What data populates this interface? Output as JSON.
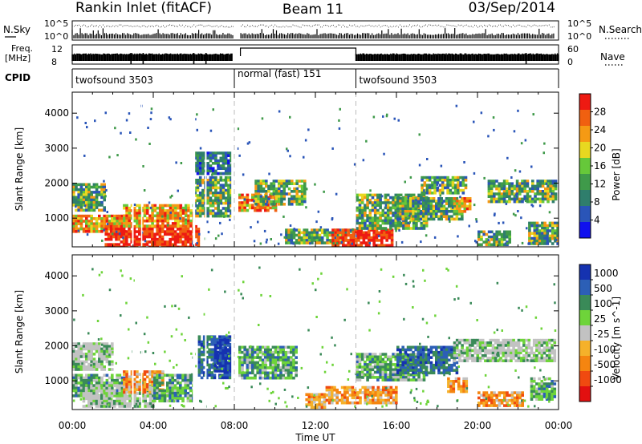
{
  "header": {
    "radar": "Rankin Inlet (fitACF)",
    "beam": "Beam 11",
    "date": "03/Sep/2014"
  },
  "noise_panel": {
    "left_label": "N.Sky",
    "right_label": "N.Search",
    "left_ticks": [
      "10^5",
      "10^0"
    ],
    "right_ticks": [
      "10^5",
      "10^0"
    ]
  },
  "freq_panel": {
    "left_label_line1": "Freq.",
    "left_label_line2": "[MHz]",
    "right_label": "Nave",
    "left_ticks": [
      "12",
      "8"
    ],
    "right_ticks": [
      "60",
      "0"
    ]
  },
  "cpid_panel": {
    "label": "CPID",
    "segments": [
      {
        "name": "twofsound 3503",
        "start_hour": 0,
        "end_hour": 8
      },
      {
        "name": "normal (fast) 151",
        "start_hour": 8,
        "end_hour": 14
      },
      {
        "name": "twofsound 3503",
        "start_hour": 14,
        "end_hour": 24
      }
    ]
  },
  "axes": {
    "xlabel": "Time UT",
    "ylabel": "Slant Range [km]",
    "x_ticks": [
      "00:00",
      "04:00",
      "08:00",
      "12:00",
      "16:00",
      "20:00",
      "00:00"
    ],
    "x_tick_hours": [
      0,
      4,
      8,
      12,
      16,
      20,
      24
    ],
    "y_ticks": [
      "1000",
      "2000",
      "3000",
      "4000"
    ],
    "y_tick_values": [
      1000,
      2000,
      3000,
      4000
    ],
    "xlim": [
      0,
      24
    ],
    "ylim": [
      180,
      4600
    ],
    "dashed_hours": [
      8,
      14
    ]
  },
  "chart_data": [
    {
      "type": "heatmap",
      "name": "power",
      "colorbar_label": "Power [dB]",
      "colorbar_ticks": [
        "28",
        "24",
        "20",
        "16",
        "12",
        "8",
        "4"
      ],
      "colorbar_tick_values": [
        28,
        24,
        20,
        16,
        12,
        8,
        4
      ],
      "colorbar_range": [
        0,
        32
      ],
      "colorbar_colors": [
        "#1010ee",
        "#2a55b8",
        "#2f7e6c",
        "#3f9a4a",
        "#66c83a",
        "#e8d820",
        "#f59a14",
        "#f06010",
        "#ee1a12"
      ],
      "regions": [
        {
          "x0": 0.0,
          "x1": 1.6,
          "y0": 1200,
          "y1": 2000,
          "level": "mid"
        },
        {
          "x0": 0.0,
          "x1": 2.6,
          "y0": 600,
          "y1": 1100,
          "level": "high"
        },
        {
          "x0": 1.6,
          "x1": 6.2,
          "y0": 200,
          "y1": 800,
          "level": "peak"
        },
        {
          "x0": 2.5,
          "x1": 6.0,
          "y0": 800,
          "y1": 1400,
          "level": "high"
        },
        {
          "x0": 6.0,
          "x1": 7.8,
          "y0": 1100,
          "y1": 2200,
          "level": "mid"
        },
        {
          "x0": 6.0,
          "x1": 7.8,
          "y0": 2300,
          "y1": 2900,
          "level": "low"
        },
        {
          "x0": 8.2,
          "x1": 10.0,
          "y0": 1200,
          "y1": 1700,
          "level": "high"
        },
        {
          "x0": 9.0,
          "x1": 11.5,
          "y0": 1400,
          "y1": 2100,
          "level": "mid"
        },
        {
          "x0": 10.5,
          "x1": 13.5,
          "y0": 300,
          "y1": 700,
          "level": "mid"
        },
        {
          "x0": 12.8,
          "x1": 15.8,
          "y0": 200,
          "y1": 700,
          "level": "peak"
        },
        {
          "x0": 14.0,
          "x1": 17.5,
          "y0": 700,
          "y1": 1700,
          "level": "mid"
        },
        {
          "x0": 16.0,
          "x1": 19.2,
          "y0": 1000,
          "y1": 1600,
          "level": "mid"
        },
        {
          "x0": 17.2,
          "x1": 19.4,
          "y0": 1700,
          "y1": 2200,
          "level": "mid"
        },
        {
          "x0": 18.8,
          "x1": 19.6,
          "y0": 1200,
          "y1": 1600,
          "level": "high"
        },
        {
          "x0": 20.0,
          "x1": 21.6,
          "y0": 250,
          "y1": 650,
          "level": "mid"
        },
        {
          "x0": 20.5,
          "x1": 23.8,
          "y0": 1500,
          "y1": 2100,
          "level": "mid"
        },
        {
          "x0": 22.5,
          "x1": 23.9,
          "y0": 300,
          "y1": 900,
          "level": "mid"
        }
      ]
    },
    {
      "type": "heatmap",
      "name": "velocity",
      "colorbar_label": "Velocity [m s^-1]",
      "colorbar_ticks": [
        "1000",
        "500",
        "100",
        "25",
        "-25",
        "-100",
        "-500",
        "-1000"
      ],
      "colorbar_tick_values": [
        1000,
        500,
        100,
        25,
        -25,
        -100,
        -500,
        -1000
      ],
      "colorbar_colors": [
        "#1532b0",
        "#2c5fb6",
        "#3a8a58",
        "#6ed43a",
        "#c2c2c2",
        "#f5b12a",
        "#f58510",
        "#f04a10",
        "#e21010"
      ],
      "regions": [
        {
          "x0": 0.0,
          "x1": 2.0,
          "y0": 1300,
          "y1": 2100,
          "level": "grey"
        },
        {
          "x0": 0.0,
          "x1": 2.6,
          "y0": 600,
          "y1": 1200,
          "level": "green"
        },
        {
          "x0": 0.5,
          "x1": 4.0,
          "y0": 250,
          "y1": 900,
          "level": "grey"
        },
        {
          "x0": 2.5,
          "x1": 4.5,
          "y0": 700,
          "y1": 1300,
          "level": "orange"
        },
        {
          "x0": 4.0,
          "x1": 6.0,
          "y0": 400,
          "y1": 1200,
          "level": "green"
        },
        {
          "x0": 6.2,
          "x1": 7.8,
          "y0": 1100,
          "y1": 2300,
          "level": "blue"
        },
        {
          "x0": 7.0,
          "x1": 7.8,
          "y0": 1300,
          "y1": 2200,
          "level": "darkblue"
        },
        {
          "x0": 8.2,
          "x1": 11.0,
          "y0": 1100,
          "y1": 2000,
          "level": "green"
        },
        {
          "x0": 11.5,
          "x1": 12.5,
          "y0": 250,
          "y1": 650,
          "level": "orange"
        },
        {
          "x0": 12.5,
          "x1": 16.0,
          "y0": 400,
          "y1": 850,
          "level": "orange"
        },
        {
          "x0": 14.0,
          "x1": 17.5,
          "y0": 1000,
          "y1": 1800,
          "level": "green"
        },
        {
          "x0": 16.0,
          "x1": 19.0,
          "y0": 1200,
          "y1": 2000,
          "level": "blue"
        },
        {
          "x0": 18.5,
          "x1": 19.4,
          "y0": 700,
          "y1": 1100,
          "level": "orange"
        },
        {
          "x0": 18.8,
          "x1": 23.8,
          "y0": 1600,
          "y1": 2200,
          "level": "grey"
        },
        {
          "x0": 20.0,
          "x1": 22.2,
          "y0": 300,
          "y1": 700,
          "level": "orange"
        },
        {
          "x0": 22.6,
          "x1": 23.8,
          "y0": 500,
          "y1": 1100,
          "level": "green"
        }
      ]
    }
  ]
}
